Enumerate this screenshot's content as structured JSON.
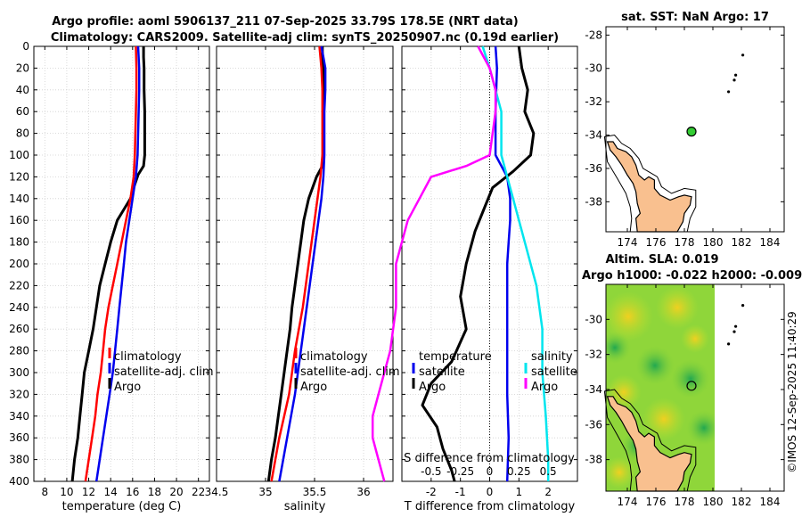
{
  "figure": {
    "title_line1": "Argo profile: aoml 5906137_211 07-Sep-2025 33.79S 178.5E (NRT data)",
    "title_line2": "Climatology: CARS2009. Satellite-adj clim: synTS_20250907.nc (0.19d earlier)",
    "credit": "©IMOS 12-Sep-2025 11:40:29"
  },
  "colors": {
    "argo": "#000000",
    "climatology": "#ff0000",
    "satellite_adj": "#0000ee",
    "satellite_s": "#00e5ee",
    "argo_s_diff": "#ff00ff",
    "land": "#f9c08f",
    "sea": "#ffffff"
  },
  "chart_data": [
    {
      "id": "temperature",
      "type": "line",
      "xlabel": "temperature (deg C)",
      "ylabel": "",
      "xlim": [
        7,
        23
      ],
      "ylim": [
        0,
        400
      ],
      "xticks": [
        8,
        10,
        12,
        14,
        16,
        18,
        20,
        22
      ],
      "yticks": [
        0,
        20,
        40,
        60,
        80,
        100,
        120,
        140,
        160,
        180,
        200,
        220,
        240,
        260,
        280,
        300,
        320,
        340,
        360,
        380,
        400
      ],
      "legend": [
        "climatology",
        "satellite-adj. clim",
        "Argo"
      ],
      "series": [
        {
          "name": "Argo",
          "color_key": "argo",
          "depth": [
            0,
            10,
            20,
            40,
            60,
            80,
            100,
            110,
            118,
            130,
            140,
            150,
            160,
            180,
            200,
            220,
            240,
            260,
            280,
            300,
            320,
            340,
            360,
            380,
            400
          ],
          "values": [
            17.0,
            17.0,
            17.05,
            17.05,
            17.1,
            17.1,
            17.1,
            17.0,
            16.5,
            16.1,
            15.8,
            15.2,
            14.6,
            14.0,
            13.5,
            13.0,
            12.7,
            12.4,
            12.0,
            11.6,
            11.4,
            11.2,
            11.0,
            10.7,
            10.5
          ]
        },
        {
          "name": "climatology",
          "color_key": "climatology",
          "depth": [
            0,
            20,
            40,
            60,
            80,
            100,
            120,
            140,
            160,
            180,
            200,
            220,
            240,
            260,
            280,
            300,
            320,
            340,
            360,
            380,
            400
          ],
          "values": [
            16.3,
            16.35,
            16.35,
            16.3,
            16.25,
            16.2,
            16.1,
            15.8,
            15.4,
            15.0,
            14.6,
            14.2,
            13.8,
            13.5,
            13.3,
            13.1,
            12.8,
            12.6,
            12.3,
            12.0,
            11.7
          ]
        },
        {
          "name": "satellite-adj. clim",
          "color_key": "satellite_adj",
          "depth": [
            0,
            20,
            40,
            60,
            80,
            100,
            120,
            140,
            160,
            180,
            200,
            220,
            240,
            260,
            280,
            300,
            320,
            340,
            360,
            380,
            400
          ],
          "values": [
            16.5,
            16.6,
            16.6,
            16.55,
            16.5,
            16.45,
            16.3,
            16.0,
            15.7,
            15.4,
            15.2,
            15.0,
            14.8,
            14.6,
            14.4,
            14.2,
            13.9,
            13.6,
            13.3,
            13.0,
            12.7
          ]
        }
      ]
    },
    {
      "id": "salinity",
      "type": "line",
      "xlabel": "salinity",
      "ylabel": "",
      "xlim": [
        34.5,
        36.3
      ],
      "ylim": [
        0,
        400
      ],
      "xticks": [
        34.5,
        35,
        35.5,
        36
      ],
      "xtick_labels": [
        "34.5",
        "35",
        "35.5",
        "36"
      ],
      "legend": [
        "climatology",
        "satellite-adj. clim",
        "Argo"
      ],
      "series": [
        {
          "name": "Argo",
          "color_key": "argo",
          "depth": [
            0,
            10,
            20,
            40,
            60,
            80,
            100,
            110,
            120,
            140,
            160,
            180,
            200,
            220,
            240,
            260,
            280,
            300,
            320,
            340,
            360,
            380,
            400
          ],
          "values": [
            35.58,
            35.58,
            35.59,
            35.59,
            35.59,
            35.59,
            35.59,
            35.58,
            35.52,
            35.44,
            35.39,
            35.36,
            35.33,
            35.3,
            35.27,
            35.25,
            35.22,
            35.19,
            35.16,
            35.13,
            35.1,
            35.06,
            35.03
          ]
        },
        {
          "name": "climatology",
          "color_key": "climatology",
          "depth": [
            0,
            20,
            40,
            60,
            80,
            100,
            120,
            140,
            160,
            180,
            200,
            220,
            240,
            260,
            280,
            300,
            320,
            340,
            360,
            380,
            400
          ],
          "values": [
            35.55,
            35.57,
            35.58,
            35.58,
            35.58,
            35.58,
            35.56,
            35.53,
            35.5,
            35.47,
            35.44,
            35.41,
            35.38,
            35.34,
            35.3,
            35.27,
            35.24,
            35.19,
            35.14,
            35.1,
            35.06
          ]
        },
        {
          "name": "satellite-adj. clim",
          "color_key": "satellite_adj",
          "depth": [
            0,
            20,
            40,
            60,
            80,
            100,
            120,
            140,
            160,
            180,
            200,
            220,
            240,
            260,
            280,
            300,
            320,
            340,
            360,
            380,
            400
          ],
          "values": [
            35.57,
            35.61,
            35.61,
            35.6,
            35.6,
            35.6,
            35.59,
            35.57,
            35.54,
            35.51,
            35.48,
            35.45,
            35.42,
            35.39,
            35.36,
            35.33,
            35.3,
            35.26,
            35.22,
            35.18,
            35.14
          ]
        }
      ]
    },
    {
      "id": "differences",
      "type": "line",
      "xlabel": "T difference from climatology",
      "xlabel_top": "S difference from climatology",
      "xlim": [
        -3,
        3
      ],
      "ylim": [
        0,
        400
      ],
      "xticks": [
        -2,
        -1,
        0,
        1,
        2
      ],
      "xtick_labels": [
        "-2",
        "-1",
        "0",
        "1",
        "2"
      ],
      "s_xticks": [
        -0.5,
        -0.25,
        0,
        0.25,
        0.5
      ],
      "s_xtick_labels": [
        "-0.5",
        "-0.25",
        "0",
        "0.25",
        "0.5"
      ],
      "s_scale": 4,
      "legend_temperature": [
        "temperature",
        "satellite",
        "Argo"
      ],
      "legend_salinity": [
        "salinity",
        "satellite",
        "Argo"
      ],
      "series": [
        {
          "name": "T satellite",
          "color_key": "satellite_adj",
          "depth": [
            0,
            20,
            60,
            100,
            120,
            140,
            160,
            180,
            200,
            240,
            280,
            320,
            360,
            400
          ],
          "values": [
            0.2,
            0.25,
            0.2,
            0.2,
            0.6,
            0.7,
            0.7,
            0.65,
            0.6,
            0.6,
            0.6,
            0.6,
            0.65,
            0.6
          ]
        },
        {
          "name": "T Argo",
          "color_key": "argo",
          "depth": [
            0,
            20,
            40,
            60,
            80,
            100,
            115,
            130,
            150,
            170,
            200,
            230,
            260,
            290,
            310,
            330,
            350,
            370,
            390,
            400
          ],
          "values": [
            1.0,
            1.1,
            1.3,
            1.2,
            1.5,
            1.4,
            0.8,
            0.1,
            -0.2,
            -0.5,
            -0.8,
            -1.0,
            -0.8,
            -1.3,
            -2.0,
            -2.3,
            -1.8,
            -1.6,
            -1.3,
            -1.2
          ]
        },
        {
          "name": "S satellite",
          "color_key": "satellite_s",
          "depth": [
            0,
            20,
            60,
            100,
            140,
            180,
            220,
            260,
            300,
            340,
            380,
            400
          ],
          "values": [
            -0.06,
            0.0,
            0.1,
            0.1,
            0.2,
            0.3,
            0.4,
            0.45,
            0.45,
            0.48,
            0.5,
            0.5
          ]
        },
        {
          "name": "S Argo",
          "color_key": "argo_s_diff",
          "depth": [
            0,
            20,
            40,
            60,
            100,
            110,
            120,
            140,
            160,
            180,
            200,
            240,
            280,
            300,
            320,
            340,
            360,
            380,
            400
          ],
          "values": [
            -0.1,
            0.0,
            0.05,
            0.05,
            0.0,
            -0.2,
            -0.5,
            -0.6,
            -0.7,
            -0.75,
            -0.8,
            -0.8,
            -0.85,
            -0.9,
            -0.95,
            -1.0,
            -1.0,
            -0.95,
            -0.9
          ]
        }
      ]
    }
  ],
  "maps": [
    {
      "id": "sst-map",
      "title": "sat. SST: NaN Argo: 17",
      "lon_ticks": [
        174,
        176,
        178,
        180,
        182,
        184
      ],
      "lat_ticks": [
        -28,
        -30,
        -32,
        -34,
        -36,
        -38
      ],
      "lon_range": [
        172.5,
        185
      ],
      "lat_range": [
        -39.8,
        -27.5
      ],
      "argo_lon": 178.5,
      "argo_lat": -33.79,
      "argo_color": "#33cc33"
    },
    {
      "id": "sla-map",
      "title_line1": "Altim. SLA: 0.019",
      "title_line2": "Argo h1000: -0.022 h2000: -0.009",
      "lon_ticks": [
        174,
        176,
        178,
        180,
        182,
        184
      ],
      "lat_ticks": [
        -30,
        -32,
        -34,
        -36,
        -38
      ],
      "lon_range": [
        172.5,
        185
      ],
      "lat_range": [
        -39.8,
        -28
      ],
      "argo_lon": 178.5,
      "argo_lat": -33.79
    }
  ]
}
